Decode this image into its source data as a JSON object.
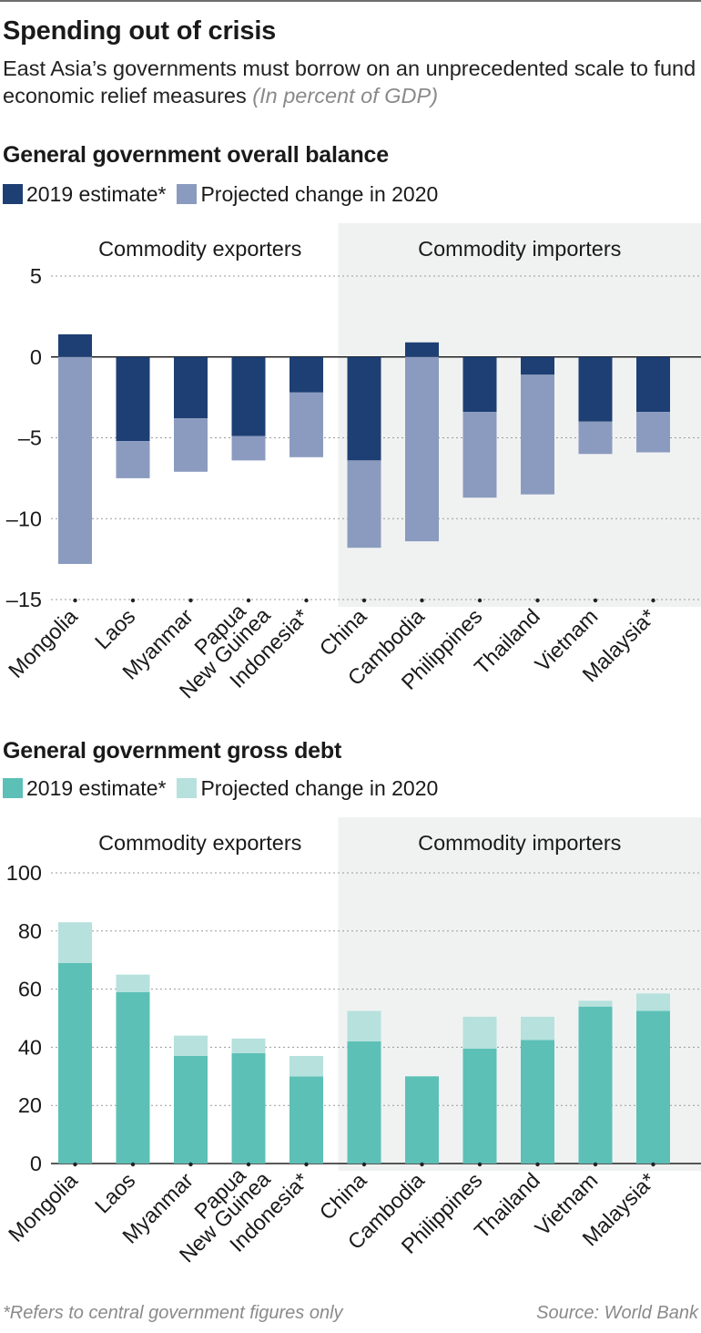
{
  "header": {
    "title": "Spending out of crisis",
    "subtitle": "East Asia’s governments must borrow on an unprecedented scale to fund economic relief measures",
    "unit": "(In percent of GDP)"
  },
  "footer": {
    "footnote": "*Refers to central government figures only",
    "source": "Source: World Bank"
  },
  "chart_data": [
    {
      "type": "bar",
      "stacked": true,
      "title": "General government overall balance",
      "categories": [
        "Mongolia",
        "Laos",
        "Myanmar",
        "Papua New Guinea",
        "Indonesia*",
        "China",
        "Cambodia",
        "Philippines",
        "Thailand",
        "Vietnam",
        "Malaysia*"
      ],
      "group_labels": [
        "Commodity exporters",
        "Commodity importers"
      ],
      "groups": [
        {
          "label": "Commodity exporters",
          "categories": [
            "Mongolia",
            "Laos",
            "Myanmar",
            "Papua New Guinea",
            "Indonesia*"
          ]
        },
        {
          "label": "Commodity importers",
          "categories": [
            "China",
            "Cambodia",
            "Philippines",
            "Thailand",
            "Vietnam",
            "Malaysia*"
          ]
        }
      ],
      "series": [
        {
          "name": "2019 estimate*",
          "color": "#1e3f73",
          "values": [
            1.4,
            -5.2,
            -3.8,
            -4.9,
            -2.2,
            -6.4,
            0.9,
            -3.4,
            -1.1,
            -4.0,
            -3.4
          ]
        },
        {
          "name": "Projected change in 2020",
          "color": "#8b9bbf",
          "values": [
            -12.8,
            -2.3,
            -3.3,
            -1.5,
            -4.0,
            -5.4,
            -11.4,
            -5.3,
            -7.4,
            -2.0,
            -2.5
          ]
        }
      ],
      "yticks": [
        5,
        0,
        -5,
        -10,
        -15
      ],
      "ytick_labels": [
        "5",
        "0",
        "–5",
        "–10",
        "–15"
      ],
      "ylim": [
        -15,
        5
      ],
      "grid": true,
      "legend_position": "top-left"
    },
    {
      "type": "bar",
      "stacked": true,
      "title": "General government gross debt",
      "categories": [
        "Mongolia",
        "Laos",
        "Myanmar",
        "Papua New Guinea",
        "Indonesia*",
        "China",
        "Cambodia",
        "Philippines",
        "Thailand",
        "Vietnam",
        "Malaysia*"
      ],
      "group_labels": [
        "Commodity exporters",
        "Commodity importers"
      ],
      "groups": [
        {
          "label": "Commodity exporters",
          "categories": [
            "Mongolia",
            "Laos",
            "Myanmar",
            "Papua New Guinea",
            "Indonesia*"
          ]
        },
        {
          "label": "Commodity importers",
          "categories": [
            "China",
            "Cambodia",
            "Philippines",
            "Thailand",
            "Vietnam",
            "Malaysia*"
          ]
        }
      ],
      "series": [
        {
          "name": "2019 estimate*",
          "color": "#5cc0b6",
          "values": [
            69,
            59,
            37,
            38,
            30,
            42,
            30,
            39.5,
            42.5,
            54,
            52.5
          ]
        },
        {
          "name": "Projected change in 2020",
          "color": "#b6e1dd",
          "values": [
            14,
            6,
            7,
            5,
            7,
            10.5,
            0,
            11,
            8,
            2,
            6
          ]
        }
      ],
      "yticks": [
        100,
        80,
        60,
        40,
        20,
        0
      ],
      "ytick_labels": [
        "100",
        "80",
        "60",
        "40",
        "20",
        "0"
      ],
      "ylim": [
        0,
        100
      ],
      "grid": true,
      "legend_position": "top-left"
    }
  ]
}
